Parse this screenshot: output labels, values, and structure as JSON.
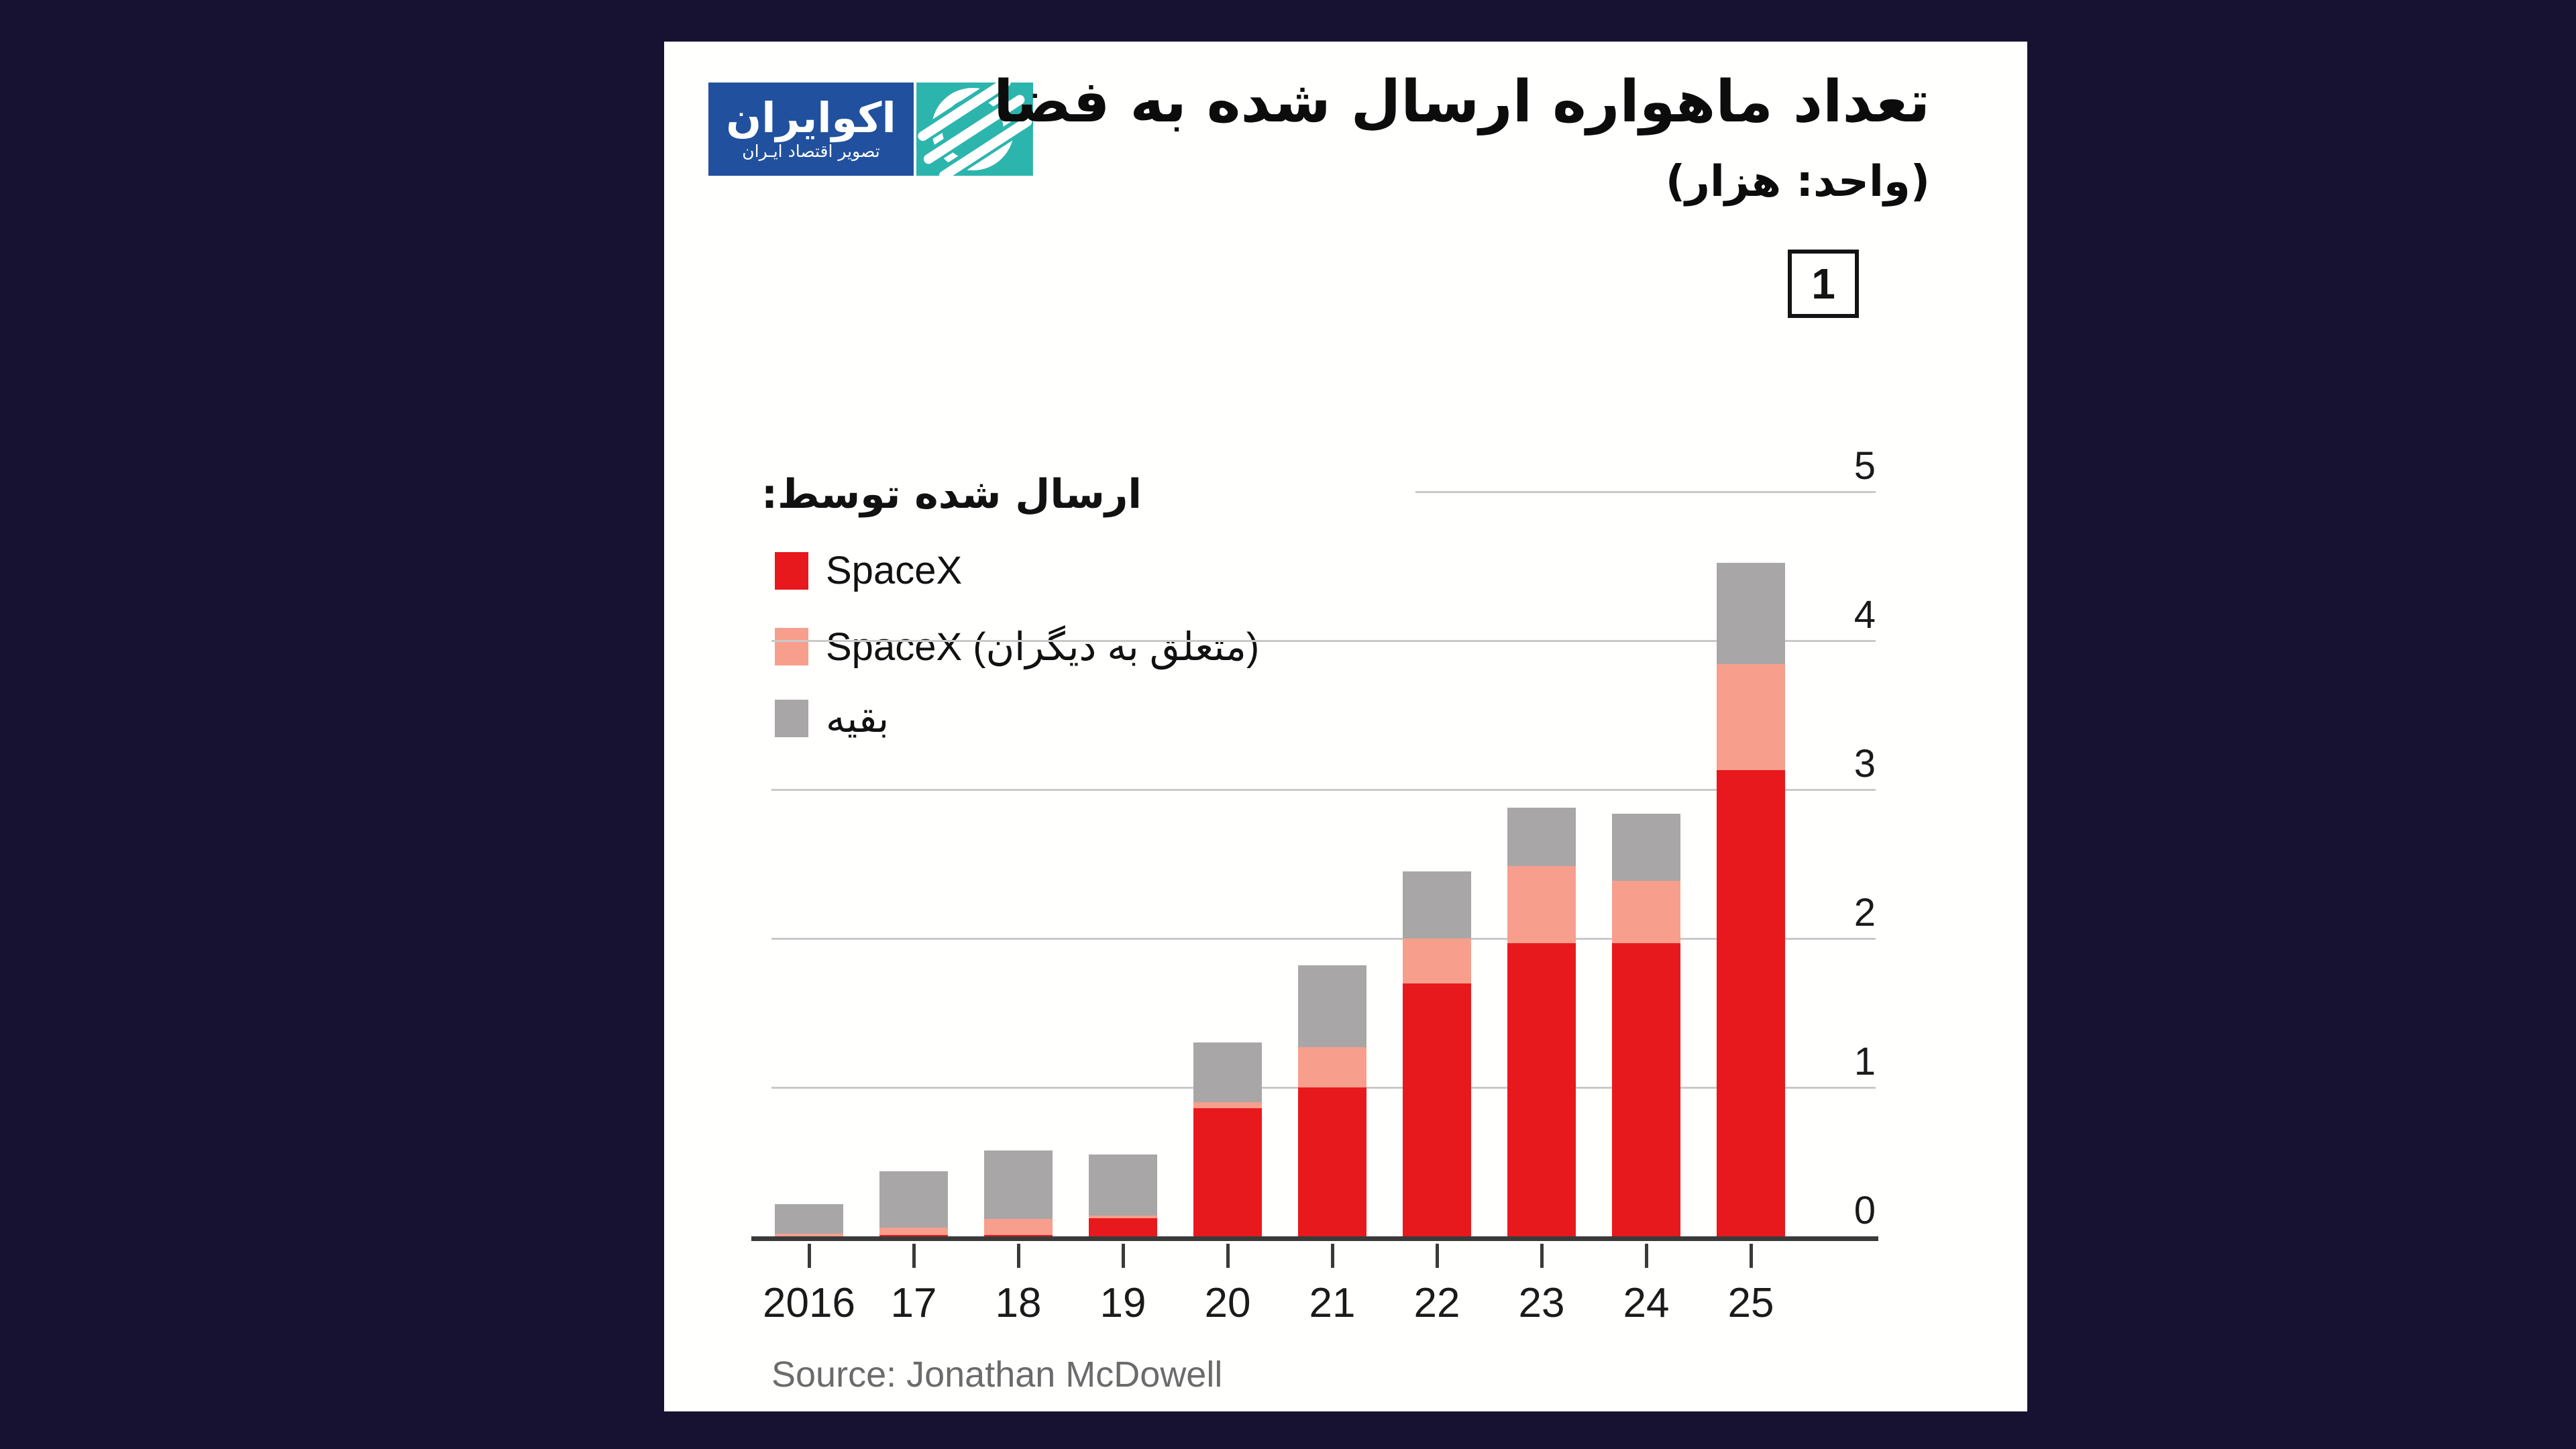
{
  "page": {
    "background": "#171132",
    "card_background": "#fffffe"
  },
  "logo": {
    "title": "اکوایران",
    "subtitle": "تصویر اقتصاد ایـران",
    "blue": "#21519e",
    "teal": "#2cb5ad",
    "mark": "ecoiran-swoosh-icon"
  },
  "header": {
    "title": "تعداد ماهواره ارسال شده به فضا",
    "subtitle": "(واحد: هزار)",
    "figure_number": "1"
  },
  "legend": {
    "title": "ارسال شده توسط:",
    "items": [
      {
        "label": "SpaceX",
        "color": "#e8191d"
      },
      {
        "label": "SpaceX (متعلق به دیگران)",
        "color": "#f89e8d"
      },
      {
        "label": "بقیه",
        "color": "#a8a6a7"
      }
    ]
  },
  "chart_data": {
    "type": "bar",
    "stacked": true,
    "title": "تعداد ماهواره ارسال شده به فضا",
    "unit_note": "(واحد: هزار)",
    "xlabel": "",
    "ylabel": "",
    "categories": [
      "2016",
      "17",
      "18",
      "19",
      "20",
      "21",
      "22",
      "23",
      "24",
      "25"
    ],
    "series": [
      {
        "name": "SpaceX",
        "color": "#e8191d",
        "values": [
          0.0,
          0.01,
          0.01,
          0.12,
          0.86,
          1.0,
          1.7,
          1.97,
          1.97,
          3.13
        ]
      },
      {
        "name": "SpaceX (متعلق به دیگران)",
        "color": "#f89e8d",
        "values": [
          0.02,
          0.05,
          0.11,
          0.02,
          0.04,
          0.27,
          0.3,
          0.52,
          0.42,
          0.71
        ]
      },
      {
        "name": "بقیه",
        "color": "#a8a6a7",
        "values": [
          0.2,
          0.38,
          0.46,
          0.41,
          0.4,
          0.55,
          0.45,
          0.39,
          0.45,
          0.68
        ]
      }
    ],
    "totals": [
      0.22,
      0.44,
      0.58,
      0.55,
      1.3,
      1.82,
      2.45,
      2.88,
      2.84,
      4.52
    ],
    "yticks": [
      0,
      1,
      2,
      3,
      4,
      5
    ],
    "ylim": [
      0,
      5
    ],
    "grid": true,
    "gridline_color": "#c9c9c9",
    "axis_color": "#3a3a3a",
    "legend_position": "upper-left"
  },
  "source": {
    "text": "Source: Jonathan McDowell"
  }
}
